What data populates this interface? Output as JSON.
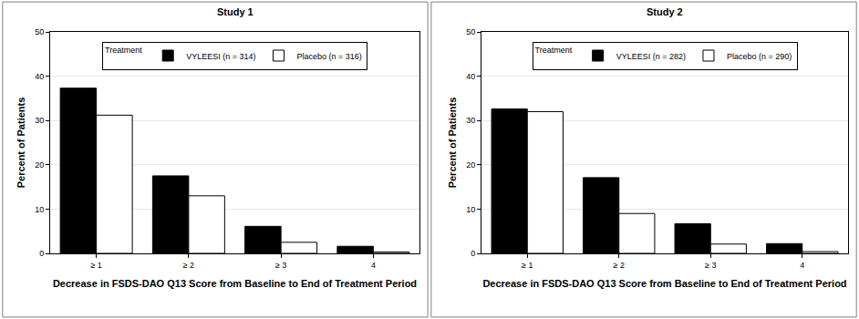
{
  "chart_data": [
    {
      "type": "bar",
      "title": "Study 1",
      "categories": [
        "≥ 1",
        "≥ 2",
        "≥ 3",
        "4"
      ],
      "series": [
        {
          "name": "VYLEESI (n = 314)",
          "color": "#000000",
          "values": [
            37.3,
            17.5,
            6.1,
            1.6
          ]
        },
        {
          "name": "Placebo (n = 316)",
          "color": "#ffffff",
          "values": [
            31.2,
            13.0,
            2.5,
            0.3
          ]
        }
      ],
      "x_label": "Decrease in FSDS-DAO Q13 Score from Baseline to End of Treatment Period",
      "y_label": "Percent of Patients",
      "legend_title": "Treatment",
      "legend": "top",
      "ylim": [
        0,
        50
      ],
      "yticks": [
        0,
        10,
        20,
        30,
        40,
        50
      ],
      "grid": true
    },
    {
      "type": "bar",
      "title": "Study 2",
      "categories": [
        "≥ 1",
        "≥ 2",
        "≥ 3",
        "4"
      ],
      "series": [
        {
          "name": "VYLEESI (n = 282)",
          "color": "#000000",
          "values": [
            32.6,
            17.1,
            6.7,
            2.2
          ]
        },
        {
          "name": "Placebo (n = 290)",
          "color": "#ffffff",
          "values": [
            32.0,
            9.0,
            2.1,
            0.4
          ]
        }
      ],
      "x_label": "Decrease in FSDS-DAO Q13 Score from Baseline to End of Treatment Period",
      "y_label": "Percent of Patients",
      "legend_title": "Treatment",
      "legend": "top",
      "ylim": [
        0,
        50
      ],
      "yticks": [
        0,
        10,
        20,
        30,
        40,
        50
      ],
      "grid": true
    }
  ]
}
